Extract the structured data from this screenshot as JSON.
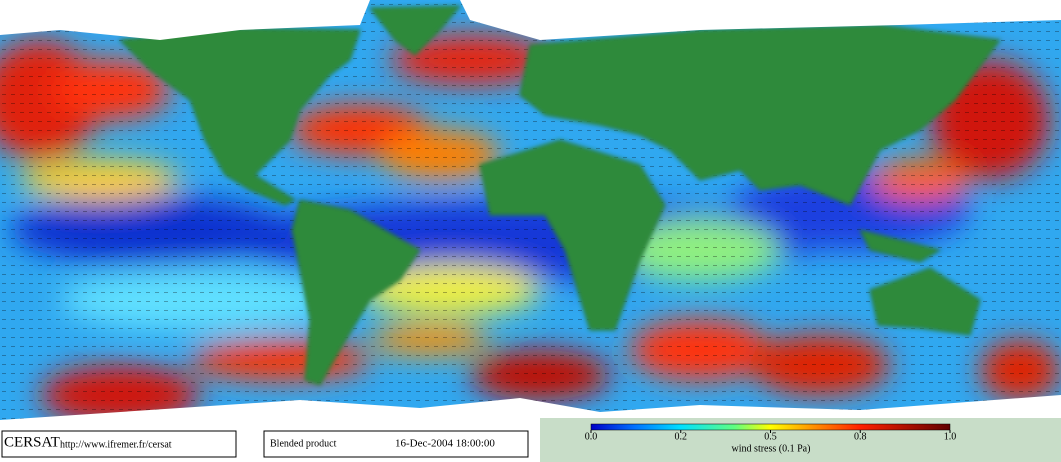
{
  "footer": {
    "logo": "CERSAT",
    "url": "http://www.ifremer.fr/cersat",
    "product": "Blended product",
    "datetime": "16-Dec-2004 18:00:00"
  },
  "colorbar": {
    "label": "wind stress (0.1 Pa)",
    "ticks": [
      {
        "value": 0,
        "label": "0.0"
      },
      {
        "value": 0.2,
        "label": "0.2"
      },
      {
        "value": 0.5,
        "label": "0.5"
      },
      {
        "value": 0.8,
        "label": "0.8"
      },
      {
        "value": 1,
        "label": "1.0"
      }
    ]
  }
}
